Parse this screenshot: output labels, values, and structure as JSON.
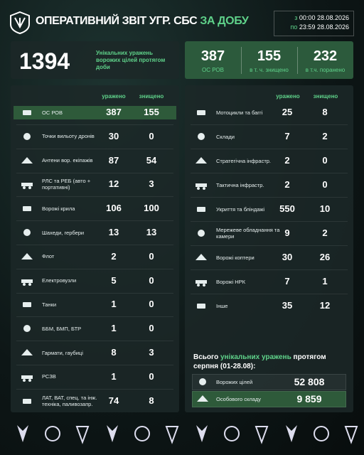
{
  "header": {
    "title": "ОПЕРАТИВНИЙ ЗВІТ УГР. СБС",
    "title_accent": "ЗА ДОБУ",
    "period": {
      "from_prefix": "з",
      "from": "00:00 28.08.2026",
      "to_prefix": "по",
      "to": "23:59 28.08.2026"
    }
  },
  "summary": {
    "total": 1394,
    "total_label": "Унікальних уражень ворожих цілей протягом доби",
    "personnel": [
      {
        "value": 387,
        "label": "ОС РОВ"
      },
      {
        "value": 155,
        "label": "в т. ч. знищено"
      },
      {
        "value": 232,
        "label": "в т.ч. поранено"
      }
    ]
  },
  "left_table": {
    "columns": [
      "уражено",
      "знищено"
    ],
    "rows": [
      {
        "label": "ОС РОВ",
        "hit": 387,
        "destroyed": 155
      },
      {
        "label": "Точки вильоту дронів",
        "hit": 30,
        "destroyed": 0
      },
      {
        "label": "Антени вор. екіпажів",
        "hit": 87,
        "destroyed": 54
      },
      {
        "label": "РЛС та РЕБ (авто + портативні)",
        "hit": 12,
        "destroyed": 3
      },
      {
        "label": "Ворожі крила",
        "hit": 106,
        "destroyed": 100
      },
      {
        "label": "Шахеди, гербери",
        "hit": 13,
        "destroyed": 13
      },
      {
        "label": "Флот",
        "hit": 2,
        "destroyed": 0
      },
      {
        "label": "Електровузли",
        "hit": 5,
        "destroyed": 0
      },
      {
        "label": "Танки",
        "hit": 1,
        "destroyed": 0
      },
      {
        "label": "ББМ, БМП, БТР",
        "hit": 1,
        "destroyed": 0
      },
      {
        "label": "Гармати, гаубиці",
        "hit": 8,
        "destroyed": 3
      },
      {
        "label": "РСЗВ",
        "hit": 1,
        "destroyed": 0
      },
      {
        "label": "ЛАТ, ВАТ, спец. та інж. техніка, паливозапр.",
        "hit": 74,
        "destroyed": 8
      }
    ]
  },
  "right_table": {
    "columns": [
      "уражено",
      "знищено"
    ],
    "rows": [
      {
        "label": "Мотоцикли та баггі",
        "hit": 25,
        "destroyed": 8
      },
      {
        "label": "Склади",
        "hit": 7,
        "destroyed": 2
      },
      {
        "label": "Стратегічна інфрастр.",
        "hit": 2,
        "destroyed": 0
      },
      {
        "label": "Тактична інфрастр.",
        "hit": 2,
        "destroyed": 0
      },
      {
        "label": "Укриття та бліндажі",
        "hit": 550,
        "destroyed": 10
      },
      {
        "label": "Мережеве обладнання та камери",
        "hit": 9,
        "destroyed": 2
      },
      {
        "label": "Ворожі коптери",
        "hit": 30,
        "destroyed": 26
      },
      {
        "label": "Ворожі НРК",
        "hit": 7,
        "destroyed": 1
      },
      {
        "label": "Інше",
        "hit": 35,
        "destroyed": 12
      }
    ]
  },
  "monthly": {
    "title": "Всього",
    "title_accent": "унікальних уражень",
    "title_end": "протягом серпня (01-28.08):",
    "rows": [
      {
        "label": "Ворожих цілей",
        "value": "52 808"
      },
      {
        "label": "Особового складу",
        "value": "9 859"
      }
    ]
  }
}
